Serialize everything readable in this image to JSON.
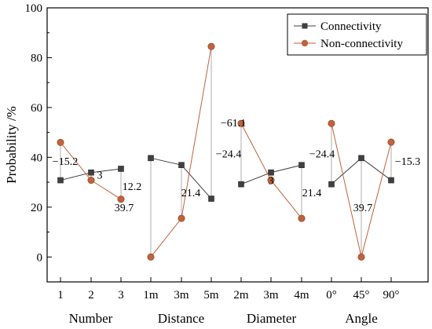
{
  "chart_data": {
    "type": "line",
    "title": "",
    "xlabel": "",
    "ylabel": "Probability /%",
    "ylim": [
      -10,
      100
    ],
    "yticks": [
      0,
      20,
      40,
      60,
      80,
      100
    ],
    "categories": [
      "1",
      "2",
      "3",
      "1m",
      "3m",
      "5m",
      "2m",
      "3m",
      "4m",
      "0°",
      "45°",
      "90°"
    ],
    "groups": [
      {
        "label": "Number",
        "categories": [
          "1",
          "2",
          "3"
        ]
      },
      {
        "label": "Distance",
        "categories": [
          "1m",
          "3m",
          "5m"
        ]
      },
      {
        "label": "Diameter",
        "categories": [
          "2m",
          "3m",
          "4m"
        ]
      },
      {
        "label": "Angle",
        "categories": [
          "0°",
          "45°",
          "90°"
        ]
      }
    ],
    "series": [
      {
        "name": "Connectivity",
        "color": "#404040",
        "marker": "square",
        "values": [
          [
            30.8,
            33.9,
            35.4
          ],
          [
            39.7,
            36.9,
            23.4
          ],
          [
            29.2,
            33.9,
            36.9
          ],
          [
            29.2,
            39.7,
            30.8
          ]
        ]
      },
      {
        "name": "Non-connectivity",
        "color": "#c0623c",
        "marker": "circle",
        "values": [
          [
            46.0,
            30.8,
            23.2
          ],
          [
            0.0,
            15.5,
            84.5
          ],
          [
            53.6,
            30.8,
            15.5
          ],
          [
            53.6,
            0.0,
            46.1
          ]
        ]
      }
    ],
    "annotations": [
      {
        "text": "−15.2",
        "x": "1",
        "y": 38.5
      },
      {
        "text": "3",
        "x": "2",
        "y": 33.0
      },
      {
        "text": "12.2",
        "x": "3",
        "y": 28.5
      },
      {
        "text": "39.7",
        "x": "1m",
        "y": 20.0
      },
      {
        "text": "21.4",
        "x": "3m",
        "y": 26.0
      },
      {
        "text": "−61.1",
        "x": "5m",
        "y": 54.0
      },
      {
        "text": "−24.4",
        "x": "5m",
        "y": 41.5
      },
      {
        "text": "3",
        "x": "3m",
        "y": 30.8
      },
      {
        "text": "21.4",
        "x": "4m",
        "y": 26.0
      },
      {
        "text": "−24.4",
        "x": "0°",
        "y": 41.5
      },
      {
        "text": "39.7",
        "x": "45°",
        "y": 20.0
      },
      {
        "text": "−15.3",
        "x": "90°",
        "y": 38.5
      }
    ],
    "grid": false,
    "legend": "top-right"
  }
}
